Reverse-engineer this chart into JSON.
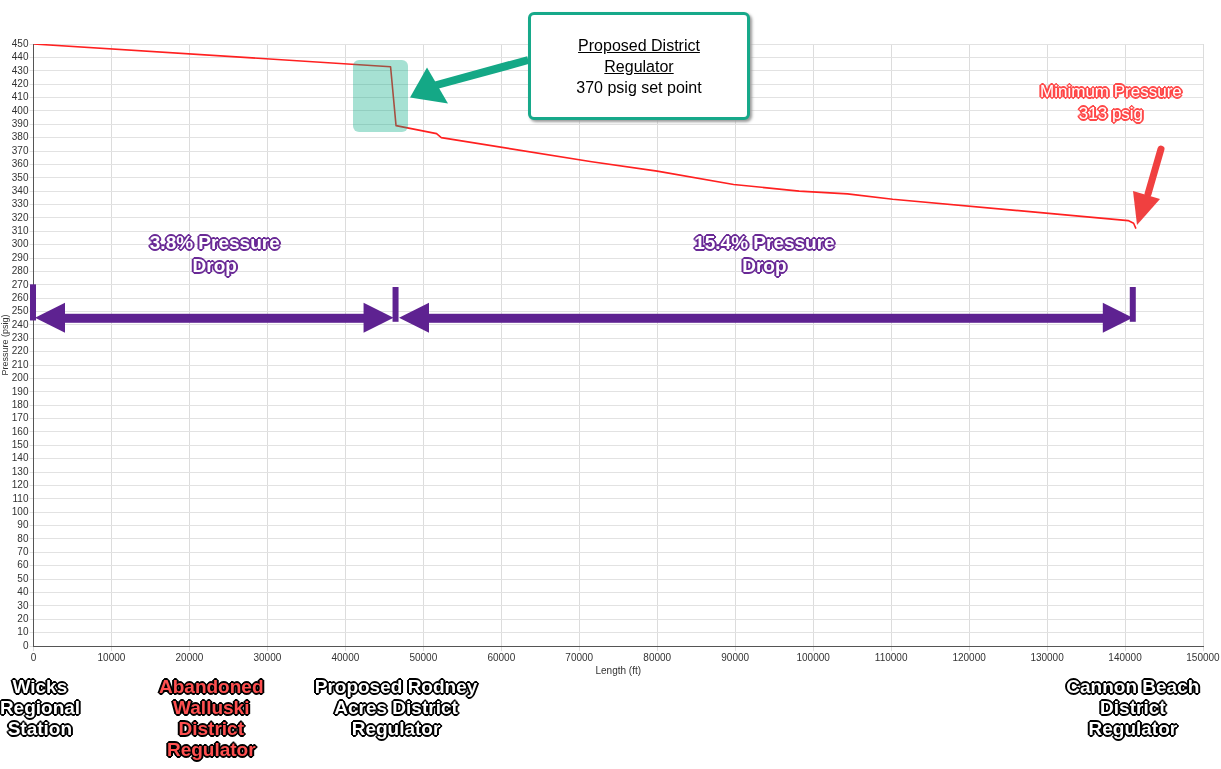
{
  "chart_data": {
    "type": "line",
    "xlabel": "Length (ft)",
    "ylabel": "Pressure (psig)",
    "x": [
      0,
      45800,
      46500,
      51700,
      52300,
      71600,
      80000,
      89800,
      98200,
      104400,
      110200,
      140400,
      141100,
      141400
    ],
    "series": [
      {
        "color": "#ff2020",
        "values": [
          450,
          433,
          389,
          383,
          380,
          362,
          355,
          345,
          340,
          338,
          334,
          318,
          316,
          312
        ]
      }
    ],
    "xlim": [
      0,
      150000
    ],
    "xticks": [
      0,
      10000,
      20000,
      30000,
      40000,
      50000,
      60000,
      70000,
      80000,
      90000,
      100000,
      110000,
      120000,
      130000,
      140000,
      150000
    ],
    "ylim": [
      0,
      450
    ],
    "yticks": [
      0,
      10,
      20,
      30,
      40,
      50,
      60,
      70,
      80,
      90,
      100,
      110,
      120,
      130,
      140,
      150,
      160,
      170,
      180,
      190,
      200,
      210,
      220,
      230,
      240,
      250,
      260,
      270,
      280,
      290,
      300,
      310,
      320,
      330,
      340,
      350,
      360,
      370,
      380,
      390,
      400,
      410,
      420,
      430,
      440,
      450
    ],
    "grid": true,
    "legend": false,
    "marker": "none",
    "line_style": "solid",
    "annotations": [
      "Proposed District Regulator",
      "370 psig set point",
      "Minimum Pressure 313 psig",
      "3.8% Pressure Drop",
      "15.4% Pressure Drop",
      "Wicks Regional Station",
      "Abandoned Walluski District Regulator",
      "Proposed Rodney Acres District Regulator",
      "Cannon Beach District Regulator"
    ]
  }
}
